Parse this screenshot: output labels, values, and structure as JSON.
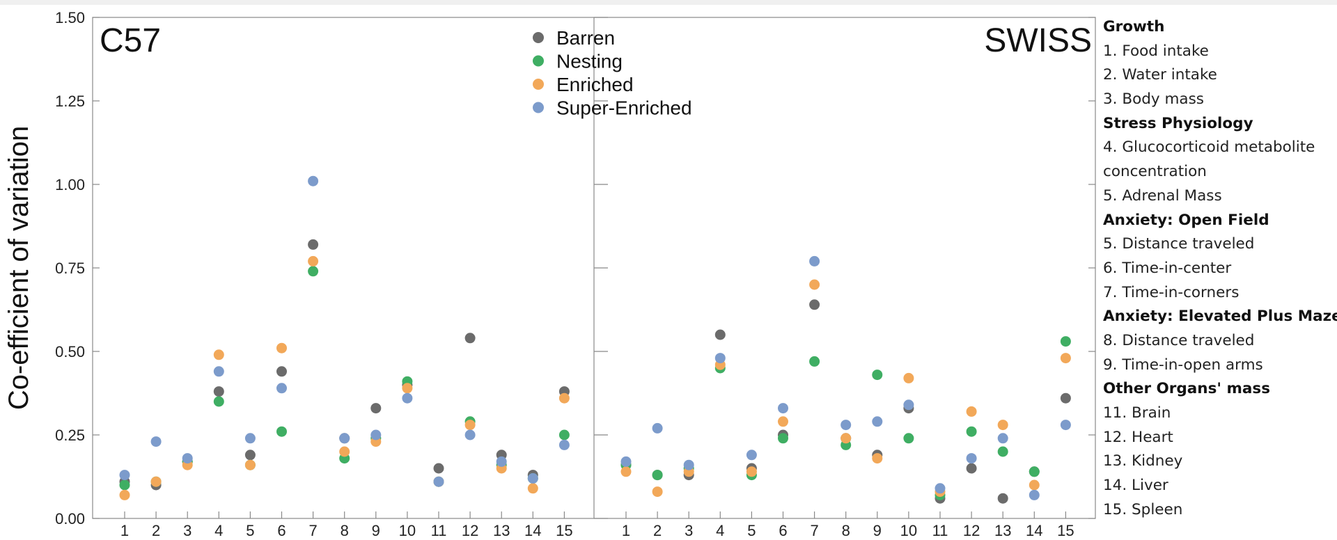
{
  "colors": {
    "Barren": "#6b6b6b",
    "Nesting": "#3fae63",
    "Enriched": "#f2a859",
    "Super-Enriched": "#7c9bcb"
  },
  "chart_data": {
    "type": "scatter",
    "ylabel": "Co-efficient of variation",
    "ylim": [
      0,
      1.5
    ],
    "yticks": [
      "0.00",
      "0.25",
      "0.50",
      "0.75",
      "1.00",
      "1.25",
      "1.50"
    ],
    "legend_position": "top-center of left panel",
    "legend": [
      "Barren",
      "Nesting",
      "Enriched",
      "Super-Enriched"
    ],
    "panels": [
      {
        "title": "C57",
        "x": [
          "1",
          "2",
          "3",
          "4",
          "5",
          "6",
          "7",
          "8",
          "9",
          "10",
          "11",
          "12",
          "13",
          "14",
          "15"
        ],
        "series": [
          {
            "name": "Barren",
            "values": [
              0.11,
              0.1,
              0.17,
              0.38,
              0.19,
              0.44,
              0.82,
              0.24,
              0.33,
              0.4,
              0.15,
              0.54,
              0.19,
              0.13,
              0.38
            ]
          },
          {
            "name": "Nesting",
            "values": [
              0.1,
              0.11,
              0.17,
              0.35,
              0.16,
              0.26,
              0.74,
              0.18,
              0.24,
              0.41,
              0.11,
              0.29,
              0.16,
              0.12,
              0.25
            ]
          },
          {
            "name": "Enriched",
            "values": [
              0.07,
              0.11,
              0.16,
              0.49,
              0.16,
              0.51,
              0.77,
              0.2,
              0.23,
              0.39,
              0.11,
              0.28,
              0.15,
              0.09,
              0.36
            ]
          },
          {
            "name": "Super-Enriched",
            "values": [
              0.13,
              0.23,
              0.18,
              0.44,
              0.24,
              0.39,
              1.01,
              0.24,
              0.25,
              0.36,
              0.11,
              0.25,
              0.17,
              0.12,
              0.22
            ]
          }
        ]
      },
      {
        "title": "SWISS",
        "x": [
          "1",
          "2",
          "3",
          "4",
          "5",
          "6",
          "7",
          "8",
          "9",
          "10",
          "11",
          "12",
          "13",
          "14",
          "15"
        ],
        "series": [
          {
            "name": "Barren",
            "values": [
              0.16,
              0.13,
              0.13,
              0.55,
              0.15,
              0.25,
              0.64,
              0.24,
              0.19,
              0.33,
              0.06,
              0.15,
              0.06,
              0.14,
              0.36
            ]
          },
          {
            "name": "Nesting",
            "values": [
              0.16,
              0.13,
              0.15,
              0.45,
              0.13,
              0.24,
              0.47,
              0.22,
              0.43,
              0.24,
              0.07,
              0.26,
              0.2,
              0.14,
              0.53
            ]
          },
          {
            "name": "Enriched",
            "values": [
              0.14,
              0.08,
              0.14,
              0.46,
              0.14,
              0.29,
              0.7,
              0.24,
              0.18,
              0.42,
              0.08,
              0.32,
              0.28,
              0.1,
              0.48
            ]
          },
          {
            "name": "Super-Enriched",
            "values": [
              0.17,
              0.27,
              0.16,
              0.48,
              0.19,
              0.33,
              0.77,
              0.28,
              0.29,
              0.34,
              0.09,
              0.18,
              0.24,
              0.07,
              0.28
            ]
          }
        ]
      }
    ]
  },
  "key_list": [
    {
      "text": "Growth",
      "heading": true
    },
    {
      "text": "1. Food intake",
      "heading": false
    },
    {
      "text": "2. Water intake",
      "heading": false
    },
    {
      "text": "3. Body mass",
      "heading": false
    },
    {
      "text": "Stress Physiology",
      "heading": true
    },
    {
      "text": "4. Glucocorticoid metabolite",
      "heading": false
    },
    {
      "text": "concentration",
      "heading": false
    },
    {
      "text": "5. Adrenal Mass",
      "heading": false
    },
    {
      "text": "Anxiety: Open Field",
      "heading": true
    },
    {
      "text": "5. Distance traveled",
      "heading": false
    },
    {
      "text": "6. Time-in-center",
      "heading": false
    },
    {
      "text": "7. Time-in-corners",
      "heading": false
    },
    {
      "text": "Anxiety: Elevated Plus Maze",
      "heading": true
    },
    {
      "text": "8. Distance traveled",
      "heading": false
    },
    {
      "text": "9. Time-in-open arms",
      "heading": false
    },
    {
      "text": "Other Organs' mass",
      "heading": true
    },
    {
      "text": "11. Brain",
      "heading": false
    },
    {
      "text": "12. Heart",
      "heading": false
    },
    {
      "text": "13. Kidney",
      "heading": false
    },
    {
      "text": "14. Liver",
      "heading": false
    },
    {
      "text": "15. Spleen",
      "heading": false
    }
  ]
}
